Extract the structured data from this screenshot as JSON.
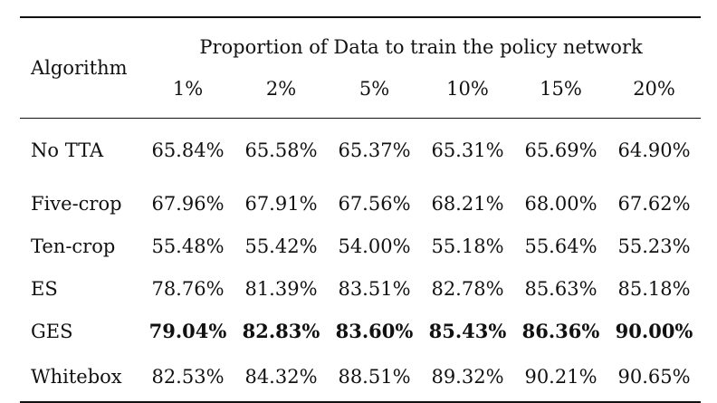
{
  "table": {
    "header": {
      "algorithm_label": "Algorithm",
      "span_label": "Proportion of Data to train the policy network",
      "proportions": [
        "1%",
        "2%",
        "5%",
        "10%",
        "15%",
        "20%"
      ]
    },
    "rows": [
      {
        "algorithm": "No TTA",
        "bold": false,
        "values": [
          "65.84%",
          "65.58%",
          "65.37%",
          "65.31%",
          "65.69%",
          "64.90%"
        ]
      },
      {
        "algorithm": "Five-crop",
        "bold": false,
        "values": [
          "67.96%",
          "67.91%",
          "67.56%",
          "68.21%",
          "68.00%",
          "67.62%"
        ]
      },
      {
        "algorithm": "Ten-crop",
        "bold": false,
        "values": [
          "55.48%",
          "55.42%",
          "54.00%",
          "55.18%",
          "55.64%",
          "55.23%"
        ]
      },
      {
        "algorithm": "ES",
        "bold": false,
        "values": [
          "78.76%",
          "81.39%",
          "83.51%",
          "82.78%",
          "85.63%",
          "85.18%"
        ]
      },
      {
        "algorithm": "GES",
        "bold": true,
        "values": [
          "79.04%",
          "82.83%",
          "83.60%",
          "85.43%",
          "86.36%",
          "90.00%"
        ]
      },
      {
        "algorithm": "Whitebox",
        "bold": false,
        "values": [
          "82.53%",
          "84.32%",
          "88.51%",
          "89.32%",
          "90.21%",
          "90.65%"
        ]
      }
    ]
  }
}
